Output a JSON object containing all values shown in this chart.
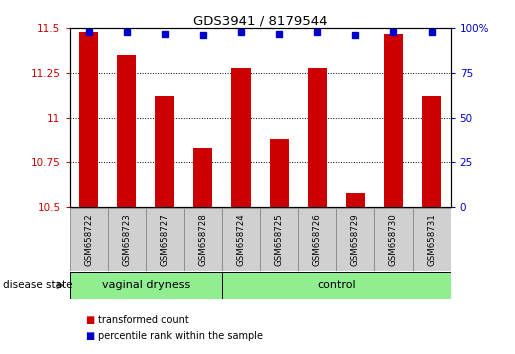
{
  "title": "GDS3941 / 8179544",
  "samples": [
    "GSM658722",
    "GSM658723",
    "GSM658727",
    "GSM658728",
    "GSM658724",
    "GSM658725",
    "GSM658726",
    "GSM658729",
    "GSM658730",
    "GSM658731"
  ],
  "bar_values": [
    11.48,
    11.35,
    11.12,
    10.83,
    11.28,
    10.88,
    11.28,
    10.58,
    11.47,
    11.12
  ],
  "dot_values": [
    98,
    98,
    97,
    96,
    98,
    97,
    98,
    96,
    98,
    98
  ],
  "bar_color": "#cc0000",
  "dot_color": "#0000cc",
  "ylim_left": [
    10.5,
    11.5
  ],
  "ylim_right": [
    0,
    100
  ],
  "yticks_left": [
    10.5,
    10.75,
    11.0,
    11.25,
    11.5
  ],
  "yticks_right": [
    0,
    25,
    50,
    75,
    100
  ],
  "groups": [
    {
      "label": "vaginal dryness",
      "start": 0,
      "end": 4
    },
    {
      "label": "control",
      "start": 4,
      "end": 10
    }
  ],
  "group_color": "#90ee90",
  "xlabel_group": "disease state",
  "legend_bar": "transformed count",
  "legend_dot": "percentile rank within the sample",
  "bar_width": 0.5,
  "label_box_color": "#d0d0d0",
  "label_box_edge": "#888888"
}
